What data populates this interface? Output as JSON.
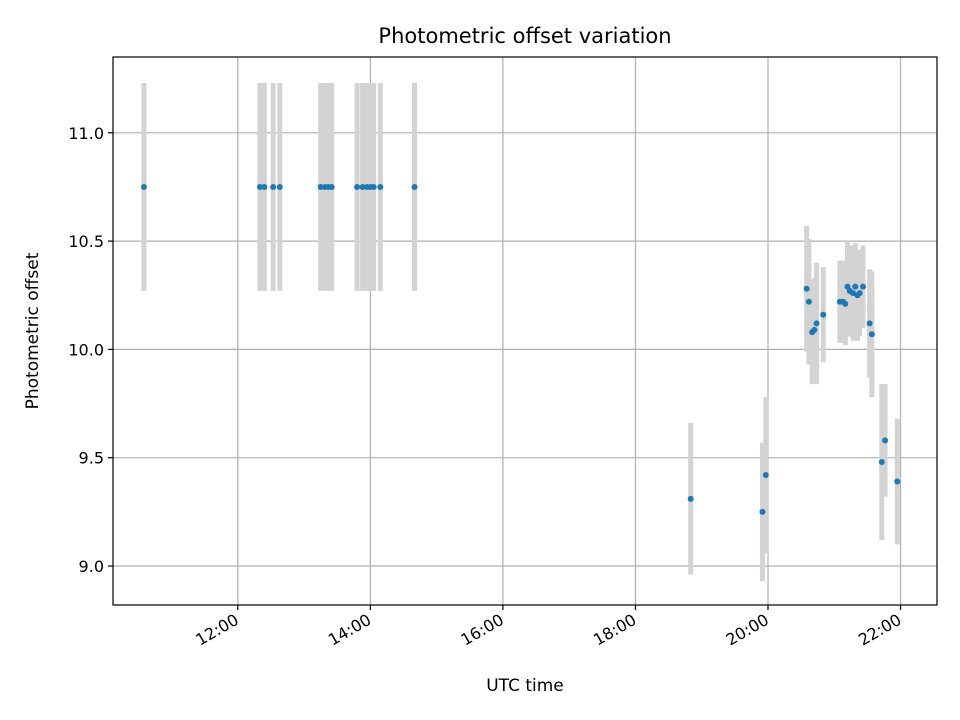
{
  "chart_data": {
    "type": "scatter",
    "title": "Photometric offset variation",
    "xlabel": "UTC time",
    "ylabel": "Photometric offset",
    "x_ticks": [
      "12:00",
      "14:00",
      "16:00",
      "18:00",
      "20:00",
      "22:00"
    ],
    "y_ticks": [
      "9.0",
      "9.5",
      "10.0",
      "10.5",
      "11.0"
    ],
    "xlim": [
      "10:07",
      "22:33"
    ],
    "ylim": [
      8.82,
      11.35
    ],
    "grid": true,
    "point_color": "#1f77b4",
    "errorbar_color": "#d3d3d3",
    "series": [
      {
        "points": [
          {
            "x": "10:35",
            "y": 10.75,
            "err": 0.48
          },
          {
            "x": "12:20",
            "y": 10.75,
            "err": 0.48
          },
          {
            "x": "12:24",
            "y": 10.75,
            "err": 0.48
          },
          {
            "x": "12:32",
            "y": 10.75,
            "err": 0.48
          },
          {
            "x": "12:38",
            "y": 10.75,
            "err": 0.48
          },
          {
            "x": "13:15",
            "y": 10.75,
            "err": 0.48
          },
          {
            "x": "13:19",
            "y": 10.75,
            "err": 0.48
          },
          {
            "x": "13:22",
            "y": 10.75,
            "err": 0.48
          },
          {
            "x": "13:25",
            "y": 10.75,
            "err": 0.48
          },
          {
            "x": "13:48",
            "y": 10.75,
            "err": 0.48
          },
          {
            "x": "13:53",
            "y": 10.75,
            "err": 0.48
          },
          {
            "x": "13:57",
            "y": 10.75,
            "err": 0.48
          },
          {
            "x": "14:00",
            "y": 10.75,
            "err": 0.48
          },
          {
            "x": "14:03",
            "y": 10.75,
            "err": 0.48
          },
          {
            "x": "14:09",
            "y": 10.75,
            "err": 0.48
          },
          {
            "x": "14:40",
            "y": 10.75,
            "err": 0.48
          },
          {
            "x": "18:50",
            "y": 9.31,
            "err": 0.35
          },
          {
            "x": "19:55",
            "y": 9.25,
            "err": 0.32
          },
          {
            "x": "19:58",
            "y": 9.42,
            "err": 0.36
          },
          {
            "x": "20:35",
            "y": 10.28,
            "err": 0.29
          },
          {
            "x": "20:37",
            "y": 10.22,
            "err": 0.29
          },
          {
            "x": "20:40",
            "y": 10.08,
            "err": 0.24
          },
          {
            "x": "20:42",
            "y": 10.09,
            "err": 0.24
          },
          {
            "x": "20:44",
            "y": 10.12,
            "err": 0.28
          },
          {
            "x": "20:50",
            "y": 10.16,
            "err": 0.22
          },
          {
            "x": "21:05",
            "y": 10.22,
            "err": 0.19
          },
          {
            "x": "21:08",
            "y": 10.22,
            "err": 0.19
          },
          {
            "x": "21:10",
            "y": 10.21,
            "err": 0.19
          },
          {
            "x": "21:12",
            "y": 10.29,
            "err": 0.21
          },
          {
            "x": "21:14",
            "y": 10.27,
            "err": 0.21
          },
          {
            "x": "21:17",
            "y": 10.26,
            "err": 0.22
          },
          {
            "x": "21:19",
            "y": 10.29,
            "err": 0.2
          },
          {
            "x": "21:21",
            "y": 10.25,
            "err": 0.21
          },
          {
            "x": "21:23",
            "y": 10.26,
            "err": 0.2
          },
          {
            "x": "21:26",
            "y": 10.29,
            "err": 0.19
          },
          {
            "x": "21:32",
            "y": 10.12,
            "err": 0.25
          },
          {
            "x": "21:34",
            "y": 10.07,
            "err": 0.29
          },
          {
            "x": "21:43",
            "y": 9.48,
            "err": 0.36
          },
          {
            "x": "21:46",
            "y": 9.58,
            "err": 0.26
          },
          {
            "x": "21:57",
            "y": 9.39,
            "err": 0.29
          }
        ]
      }
    ]
  }
}
